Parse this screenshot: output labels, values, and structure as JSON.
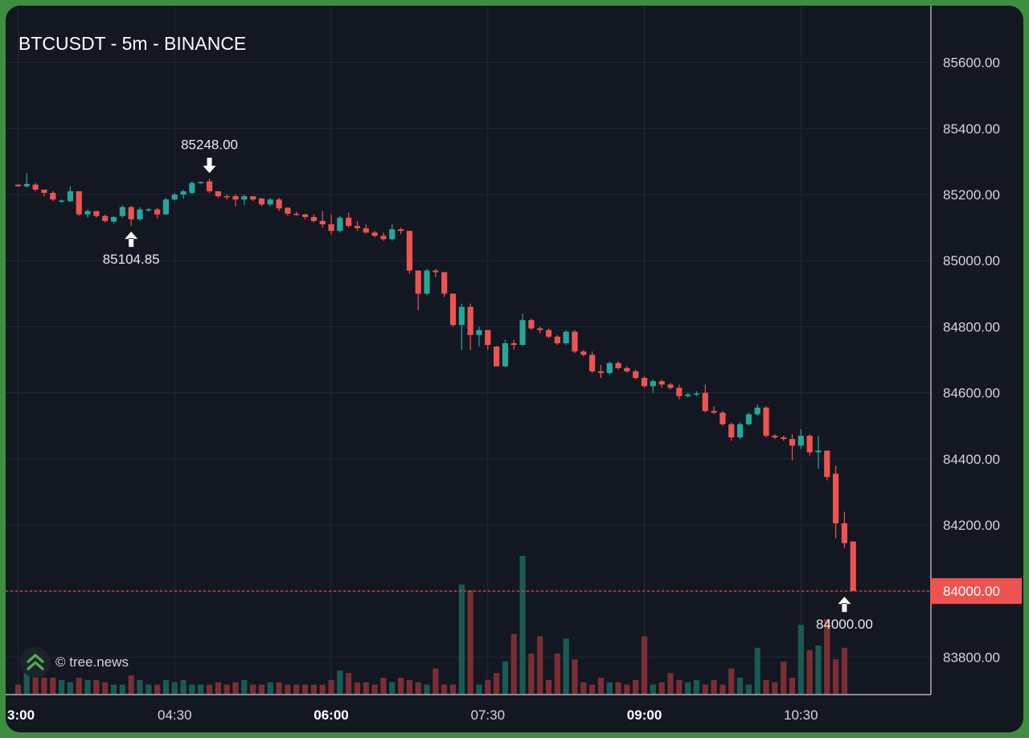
{
  "chart_data": {
    "type": "candlestick",
    "title": "BTCUSDT - 5m - BINANCE",
    "y_ticks": [
      "85600.00",
      "85400.00",
      "85200.00",
      "85000.00",
      "84800.00",
      "84600.00",
      "84400.00",
      "84200.00",
      "84000.00",
      "83800.00"
    ],
    "ylim": [
      83700,
      85810
    ],
    "x_ticks": [
      {
        "label": "3:00",
        "index": 0,
        "bold": true
      },
      {
        "label": "04:30",
        "index": 18,
        "bold": false
      },
      {
        "label": "06:00",
        "index": 36,
        "bold": true
      },
      {
        "label": "07:30",
        "index": 54,
        "bold": false
      },
      {
        "label": "09:00",
        "index": 72,
        "bold": true
      },
      {
        "label": "10:30",
        "index": 90,
        "bold": false
      }
    ],
    "current_price": "84000.00",
    "annotations": [
      {
        "text": "85248.00",
        "index": 22,
        "price": 85248,
        "position": "above"
      },
      {
        "text": "85104.85",
        "index": 13,
        "price": 85104.85,
        "position": "below"
      },
      {
        "text": "84000.00",
        "index": 95,
        "price": 84000,
        "position": "below"
      }
    ],
    "colors": {
      "up": "#26a69a",
      "down": "#ef5350",
      "up_volume": "#1a5a55",
      "down_volume": "#7a2e34",
      "price_line": "#ef5350"
    },
    "candles": [
      [
        85230,
        85230,
        85225,
        85225
      ],
      [
        85225,
        85265,
        85220,
        85232
      ],
      [
        85230,
        85235,
        85210,
        85215
      ],
      [
        85215,
        85215,
        85195,
        85205
      ],
      [
        85205,
        85210,
        85180,
        85185
      ],
      [
        85180,
        85185,
        85175,
        85182
      ],
      [
        85180,
        85225,
        85178,
        85210
      ],
      [
        85210,
        85210,
        85135,
        85140
      ],
      [
        85140,
        85155,
        85130,
        85150
      ],
      [
        85150,
        85150,
        85130,
        85135
      ],
      [
        85135,
        85140,
        85115,
        85120
      ],
      [
        85118,
        85135,
        85112,
        85132
      ],
      [
        85135,
        85168,
        85130,
        85162
      ],
      [
        85162,
        85165,
        85105,
        85125
      ],
      [
        85125,
        85162,
        85120,
        85155
      ],
      [
        85155,
        85160,
        85148,
        85155
      ],
      [
        85155,
        85160,
        85128,
        85140
      ],
      [
        85140,
        85190,
        85138,
        85185
      ],
      [
        85185,
        85205,
        85182,
        85200
      ],
      [
        85200,
        85215,
        85188,
        85210
      ],
      [
        85205,
        85240,
        85200,
        85235
      ],
      [
        85235,
        85240,
        85232,
        85238
      ],
      [
        85240,
        85248,
        85205,
        85210
      ],
      [
        85210,
        85210,
        85190,
        85195
      ],
      [
        85195,
        85200,
        85185,
        85192
      ],
      [
        85195,
        85200,
        85165,
        85185
      ],
      [
        85185,
        85200,
        85168,
        85195
      ],
      [
        85195,
        85195,
        85180,
        85185
      ],
      [
        85188,
        85190,
        85165,
        85170
      ],
      [
        85170,
        85190,
        85165,
        85185
      ],
      [
        85185,
        85190,
        85150,
        85158
      ],
      [
        85160,
        85162,
        85135,
        85142
      ],
      [
        85142,
        85148,
        85135,
        85140
      ],
      [
        85140,
        85142,
        85125,
        85132
      ],
      [
        85132,
        85140,
        85115,
        85120
      ],
      [
        85120,
        85150,
        85100,
        85110
      ],
      [
        85110,
        85140,
        85080,
        85090
      ],
      [
        85090,
        85135,
        85085,
        85130
      ],
      [
        85130,
        85145,
        85100,
        85105
      ],
      [
        85105,
        85120,
        85090,
        85098
      ],
      [
        85098,
        85110,
        85082,
        85085
      ],
      [
        85085,
        85090,
        85070,
        85075
      ],
      [
        85075,
        85085,
        85060,
        85065
      ],
      [
        85065,
        85110,
        85060,
        85095
      ],
      [
        85095,
        85100,
        85080,
        85090
      ],
      [
        85090,
        85090,
        84960,
        84970
      ],
      [
        84970,
        84970,
        84850,
        84900
      ],
      [
        84900,
        84975,
        84895,
        84970
      ],
      [
        84970,
        84975,
        84950,
        84965
      ],
      [
        84965,
        84965,
        84890,
        84900
      ],
      [
        84900,
        84900,
        84800,
        84805
      ],
      [
        84805,
        84870,
        84730,
        84860
      ],
      [
        84860,
        84870,
        84730,
        84775
      ],
      [
        84775,
        84800,
        84740,
        84790
      ],
      [
        84790,
        84790,
        84730,
        84745
      ],
      [
        84740,
        84742,
        84680,
        84680
      ],
      [
        84680,
        84760,
        84678,
        84750
      ],
      [
        84750,
        84760,
        84730,
        84745
      ],
      [
        84745,
        84840,
        84740,
        84820
      ],
      [
        84820,
        84825,
        84790,
        84795
      ],
      [
        84795,
        84800,
        84780,
        84790
      ],
      [
        84790,
        84795,
        84765,
        84770
      ],
      [
        84770,
        84775,
        84745,
        84750
      ],
      [
        84750,
        84790,
        84745,
        84785
      ],
      [
        84785,
        84790,
        84720,
        84725
      ],
      [
        84725,
        84730,
        84710,
        84715
      ],
      [
        84715,
        84725,
        84660,
        84665
      ],
      [
        84665,
        84685,
        84645,
        84660
      ],
      [
        84660,
        84695,
        84655,
        84690
      ],
      [
        84690,
        84695,
        84670,
        84675
      ],
      [
        84675,
        84680,
        84660,
        84665
      ],
      [
        84665,
        84670,
        84640,
        84645
      ],
      [
        84645,
        84650,
        84615,
        84620
      ],
      [
        84620,
        84640,
        84600,
        84635
      ],
      [
        84635,
        84640,
        84615,
        84625
      ],
      [
        84625,
        84630,
        84610,
        84615
      ],
      [
        84615,
        84625,
        84580,
        84590
      ],
      [
        84590,
        84600,
        84585,
        84595
      ],
      [
        84595,
        84605,
        84590,
        84598
      ],
      [
        84600,
        84625,
        84540,
        84545
      ],
      [
        84545,
        84560,
        84535,
        84540
      ],
      [
        84540,
        84545,
        84500,
        84505
      ],
      [
        84505,
        84510,
        84455,
        84465
      ],
      [
        84465,
        84510,
        84460,
        84505
      ],
      [
        84505,
        84540,
        84500,
        84535
      ],
      [
        84535,
        84565,
        84530,
        84555
      ],
      [
        84555,
        84560,
        84465,
        84470
      ],
      [
        84470,
        84475,
        84460,
        84465
      ],
      [
        84465,
        84470,
        84455,
        84460
      ],
      [
        84460,
        84475,
        84395,
        84440
      ],
      [
        84440,
        84490,
        84430,
        84470
      ],
      [
        84470,
        84475,
        84410,
        84420
      ],
      [
        84420,
        84470,
        84370,
        84425
      ],
      [
        84425,
        84425,
        84335,
        84345
      ],
      [
        84355,
        84380,
        84160,
        84205
      ],
      [
        84205,
        84240,
        84130,
        84145
      ],
      [
        84150,
        84150,
        84000,
        84000
      ]
    ],
    "volumes": [
      8,
      18,
      16,
      14,
      14,
      12,
      10,
      14,
      12,
      12,
      10,
      8,
      8,
      16,
      12,
      8,
      8,
      12,
      10,
      12,
      8,
      8,
      8,
      10,
      8,
      10,
      12,
      8,
      8,
      10,
      10,
      8,
      8,
      8,
      8,
      8,
      12,
      20,
      18,
      10,
      10,
      8,
      14,
      10,
      14,
      12,
      10,
      8,
      22,
      8,
      8,
      95,
      90,
      8,
      12,
      18,
      28,
      52,
      120,
      35,
      50,
      12,
      35,
      48,
      30,
      10,
      8,
      14,
      10,
      10,
      8,
      12,
      50,
      8,
      10,
      18,
      12,
      10,
      12,
      8,
      12,
      8,
      22,
      14,
      8,
      40,
      12,
      10,
      28,
      14,
      60,
      38,
      42,
      65,
      30,
      40
    ]
  }
}
